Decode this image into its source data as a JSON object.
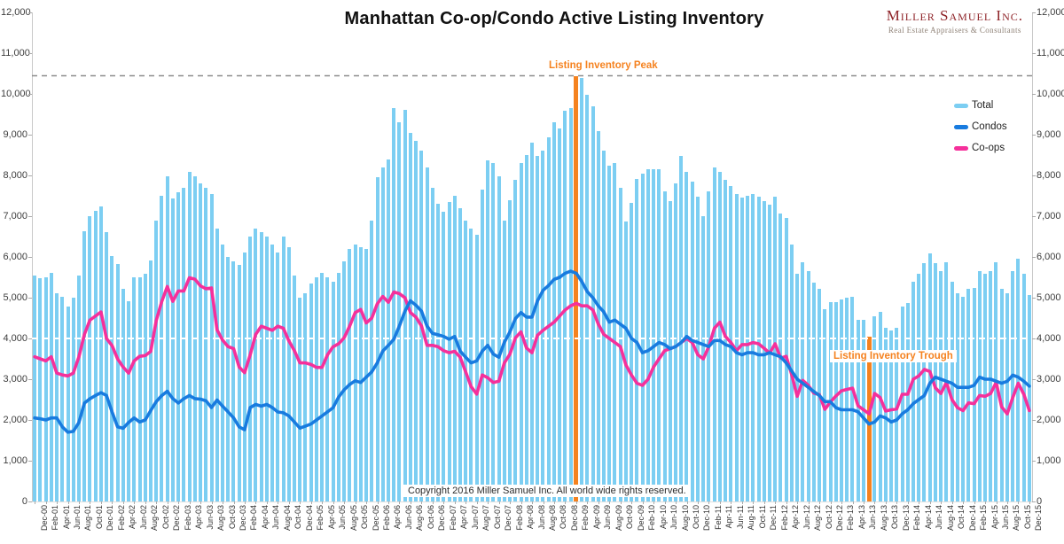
{
  "title": "Manhattan Co-op/Condo Active Listing Inventory",
  "logo": {
    "name": "Miller Samuel Inc.",
    "tagline": "Real Estate Appraisers & Consultants"
  },
  "copyright": "Copyright 2016 Miller Samuel Inc. All world wide rights reserved.",
  "legend": [
    {
      "label": "Total",
      "color": "#7cceF2"
    },
    {
      "label": "Condos",
      "color": "#187bdf"
    },
    {
      "label": "Co-ops",
      "color": "#f5309b"
    }
  ],
  "annotations": {
    "peak": {
      "label": "Listing Inventory Peak",
      "month": "Feb-09",
      "month_index": 98,
      "value": 10445,
      "line_color": "#8c8c8c",
      "marker_color": "#f5821f"
    },
    "trough": {
      "label": "Listing Inventory Trough",
      "month": "Jul-13",
      "month_index": 151,
      "value": 4050,
      "marker_color": "#f5821f"
    },
    "reference_line_white": {
      "value": 4000,
      "color": "#ffffff"
    }
  },
  "axes": {
    "y_min": 0,
    "y_max": 12000,
    "y_step": 1000,
    "y_ticks": [
      "0",
      "1,000",
      "2,000",
      "3,000",
      "4,000",
      "5,000",
      "6,000",
      "7,000",
      "8,000",
      "9,000",
      "10,000",
      "11,000",
      "12,000"
    ]
  },
  "chart_data": {
    "type": "bar+line",
    "frequency": "monthly",
    "x_start": "Dec-00",
    "x_end": "Dec-15",
    "ylim": [
      0,
      12000
    ],
    "legend_position": "upper-right",
    "grid": false,
    "x_tick_labels": [
      "Dec-00",
      "Feb-01",
      "Apr-01",
      "Jun-01",
      "Aug-01",
      "Oct-01",
      "Dec-01",
      "Feb-02",
      "Apr-02",
      "Jun-02",
      "Aug-02",
      "Oct-02",
      "Dec-02",
      "Feb-03",
      "Apr-03",
      "Jun-03",
      "Aug-03",
      "Oct-03",
      "Dec-03",
      "Feb-04",
      "Apr-04",
      "Jun-04",
      "Aug-04",
      "Oct-04",
      "Dec-04",
      "Feb-05",
      "Apr-05",
      "Jun-05",
      "Aug-05",
      "Oct-05",
      "Dec-05",
      "Feb-06",
      "Apr-06",
      "Jun-06",
      "Aug-06",
      "Oct-06",
      "Dec-06",
      "Feb-07",
      "Apr-07",
      "Jun-07",
      "Aug-07",
      "Oct-07",
      "Dec-07",
      "Feb-08",
      "Apr-08",
      "Jun-08",
      "Aug-08",
      "Oct-08",
      "Dec-08",
      "Feb-09",
      "Apr-09",
      "Jun-09",
      "Aug-09",
      "Oct-09",
      "Dec-09",
      "Feb-10",
      "Apr-10",
      "Jun-10",
      "Aug-10",
      "Oct-10",
      "Dec-10",
      "Feb-11",
      "Apr-11",
      "Jun-11",
      "Aug-11",
      "Oct-11",
      "Dec-11",
      "Feb-12",
      "Apr-12",
      "Jun-12",
      "Aug-12",
      "Oct-12",
      "Dec-12",
      "Feb-13",
      "Apr-13",
      "Jun-13",
      "Aug-13",
      "Oct-13",
      "Dec-13",
      "Feb-14",
      "Apr-14",
      "Jun-14",
      "Aug-14",
      "Oct-14",
      "Dec-14",
      "Feb-15",
      "Apr-15",
      "Jun-15",
      "Aug-15",
      "Oct-15",
      "Dec-15"
    ],
    "series": [
      {
        "name": "Total",
        "type": "bar",
        "color": "#7cceF2",
        "values": [
          5550,
          5480,
          5500,
          5615,
          5105,
          5030,
          4780,
          5000,
          5540,
          6630,
          7000,
          7140,
          7250,
          6600,
          6020,
          5835,
          5215,
          4925,
          5510,
          5510,
          5580,
          5910,
          6890,
          7510,
          7980,
          7435,
          7580,
          7690,
          8090,
          7980,
          7800,
          7690,
          7545,
          6700,
          6300,
          6000,
          5900,
          5800,
          6100,
          6500,
          6700,
          6600,
          6500,
          6300,
          6100,
          6500,
          6250,
          5550,
          5000,
          5100,
          5350,
          5500,
          5600,
          5500,
          5400,
          5600,
          5900,
          6200,
          6300,
          6250,
          6200,
          6900,
          7950,
          8200,
          8400,
          9650,
          9300,
          9600,
          9050,
          8850,
          8600,
          8200,
          7700,
          7300,
          7100,
          7350,
          7500,
          7200,
          6900,
          6700,
          6550,
          7650,
          8370,
          8310,
          7980,
          6890,
          7400,
          7900,
          8300,
          8500,
          8800,
          8480,
          8600,
          8930,
          9300,
          9150,
          9590,
          9660,
          10445,
          10390,
          9990,
          9700,
          9080,
          8610,
          8240,
          8300,
          7700,
          6880,
          7330,
          7910,
          8050,
          8160,
          8160,
          8160,
          7600,
          7370,
          7800,
          8490,
          8090,
          7850,
          7480,
          7000,
          7600,
          8200,
          8090,
          7900,
          7750,
          7550,
          7450,
          7500,
          7550,
          7470,
          7360,
          7290,
          7470,
          7070,
          6960,
          6310,
          5580,
          5870,
          5650,
          5360,
          5220,
          4710,
          4890,
          4890,
          4965,
          5000,
          5030,
          4450,
          4450,
          4050,
          4550,
          4650,
          4270,
          4200,
          4270,
          4780,
          4880,
          5400,
          5580,
          5840,
          6090,
          5840,
          5650,
          5870,
          5400,
          5100,
          5030,
          5220,
          5250,
          5650,
          5580,
          5650,
          5870,
          5220,
          5100,
          5650,
          5950,
          5580,
          5060
        ]
      },
      {
        "name": "Condos",
        "type": "line",
        "color": "#187bdf",
        "values": [
          2050,
          2030,
          2000,
          2050,
          2050,
          1830,
          1700,
          1720,
          1940,
          2415,
          2520,
          2600,
          2670,
          2600,
          2195,
          1830,
          1795,
          1940,
          2050,
          1950,
          2000,
          2230,
          2450,
          2600,
          2705,
          2525,
          2415,
          2525,
          2600,
          2525,
          2510,
          2470,
          2305,
          2490,
          2340,
          2200,
          2050,
          1830,
          1760,
          2305,
          2380,
          2340,
          2380,
          2305,
          2195,
          2175,
          2100,
          1950,
          1800,
          1850,
          1900,
          2000,
          2100,
          2200,
          2300,
          2560,
          2740,
          2870,
          2960,
          2920,
          3050,
          3180,
          3400,
          3690,
          3830,
          3980,
          4305,
          4670,
          4925,
          4815,
          4670,
          4305,
          4125,
          4090,
          4050,
          3980,
          4050,
          3690,
          3540,
          3400,
          3450,
          3690,
          3830,
          3615,
          3540,
          3905,
          4160,
          4490,
          4635,
          4525,
          4525,
          4925,
          5180,
          5300,
          5450,
          5500,
          5600,
          5650,
          5600,
          5400,
          5150,
          5000,
          4800,
          4650,
          4400,
          4450,
          4350,
          4250,
          4000,
          3900,
          3650,
          3700,
          3800,
          3900,
          3850,
          3750,
          3800,
          3900,
          4050,
          3950,
          3900,
          3850,
          3800,
          3950,
          3950,
          3850,
          3800,
          3650,
          3600,
          3650,
          3650,
          3600,
          3600,
          3650,
          3600,
          3550,
          3400,
          3200,
          3000,
          2900,
          2800,
          2700,
          2600,
          2450,
          2450,
          2300,
          2250,
          2250,
          2250,
          2200,
          2050,
          1900,
          1950,
          2100,
          2050,
          1950,
          2000,
          2150,
          2250,
          2400,
          2500,
          2600,
          2900,
          3050,
          3000,
          2950,
          2900,
          2800,
          2800,
          2800,
          2850,
          3050,
          3000,
          3000,
          2950,
          2900,
          2950,
          3100,
          3050,
          2950,
          2830
        ]
      },
      {
        "name": "Co-ops",
        "type": "line",
        "color": "#f5309b",
        "values": [
          3550,
          3500,
          3450,
          3550,
          3150,
          3105,
          3080,
          3150,
          3550,
          4100,
          4450,
          4550,
          4650,
          4000,
          3825,
          3500,
          3300,
          3150,
          3450,
          3560,
          3580,
          3680,
          4440,
          4910,
          5275,
          4910,
          5165,
          5165,
          5490,
          5455,
          5290,
          5220,
          5240,
          4210,
          3960,
          3800,
          3750,
          3300,
          3160,
          3600,
          4100,
          4300,
          4250,
          4200,
          4300,
          4250,
          3940,
          3700,
          3400,
          3400,
          3360,
          3290,
          3290,
          3600,
          3795,
          3870,
          4015,
          4300,
          4635,
          4710,
          4380,
          4500,
          4850,
          5030,
          4890,
          5140,
          5100,
          5000,
          4635,
          4525,
          4305,
          3830,
          3830,
          3795,
          3700,
          3650,
          3685,
          3540,
          3180,
          2815,
          2635,
          3105,
          3035,
          2920,
          2950,
          3400,
          3615,
          4015,
          4160,
          3765,
          3650,
          4080,
          4200,
          4300,
          4400,
          4550,
          4700,
          4800,
          4860,
          4800,
          4800,
          4700,
          4350,
          4100,
          4000,
          3900,
          3800,
          3350,
          3100,
          2900,
          2850,
          3000,
          3300,
          3500,
          3700,
          3750,
          3800,
          3900,
          4000,
          3900,
          3600,
          3500,
          3800,
          4250,
          4400,
          4050,
          3900,
          3700,
          3850,
          3850,
          3900,
          3870,
          3760,
          3640,
          3870,
          3520,
          3560,
          3110,
          2580,
          2970,
          2850,
          2660,
          2620,
          2260,
          2440,
          2590,
          2715,
          2750,
          2780,
          2350,
          2250,
          2150,
          2650,
          2550,
          2220,
          2250,
          2270,
          2630,
          2630,
          3000,
          3080,
          3240,
          3190,
          2790,
          2650,
          2920,
          2500,
          2300,
          2230,
          2420,
          2400,
          2600,
          2580,
          2650,
          2920,
          2320,
          2150,
          2550,
          2900,
          2630,
          2230
        ]
      }
    ]
  }
}
